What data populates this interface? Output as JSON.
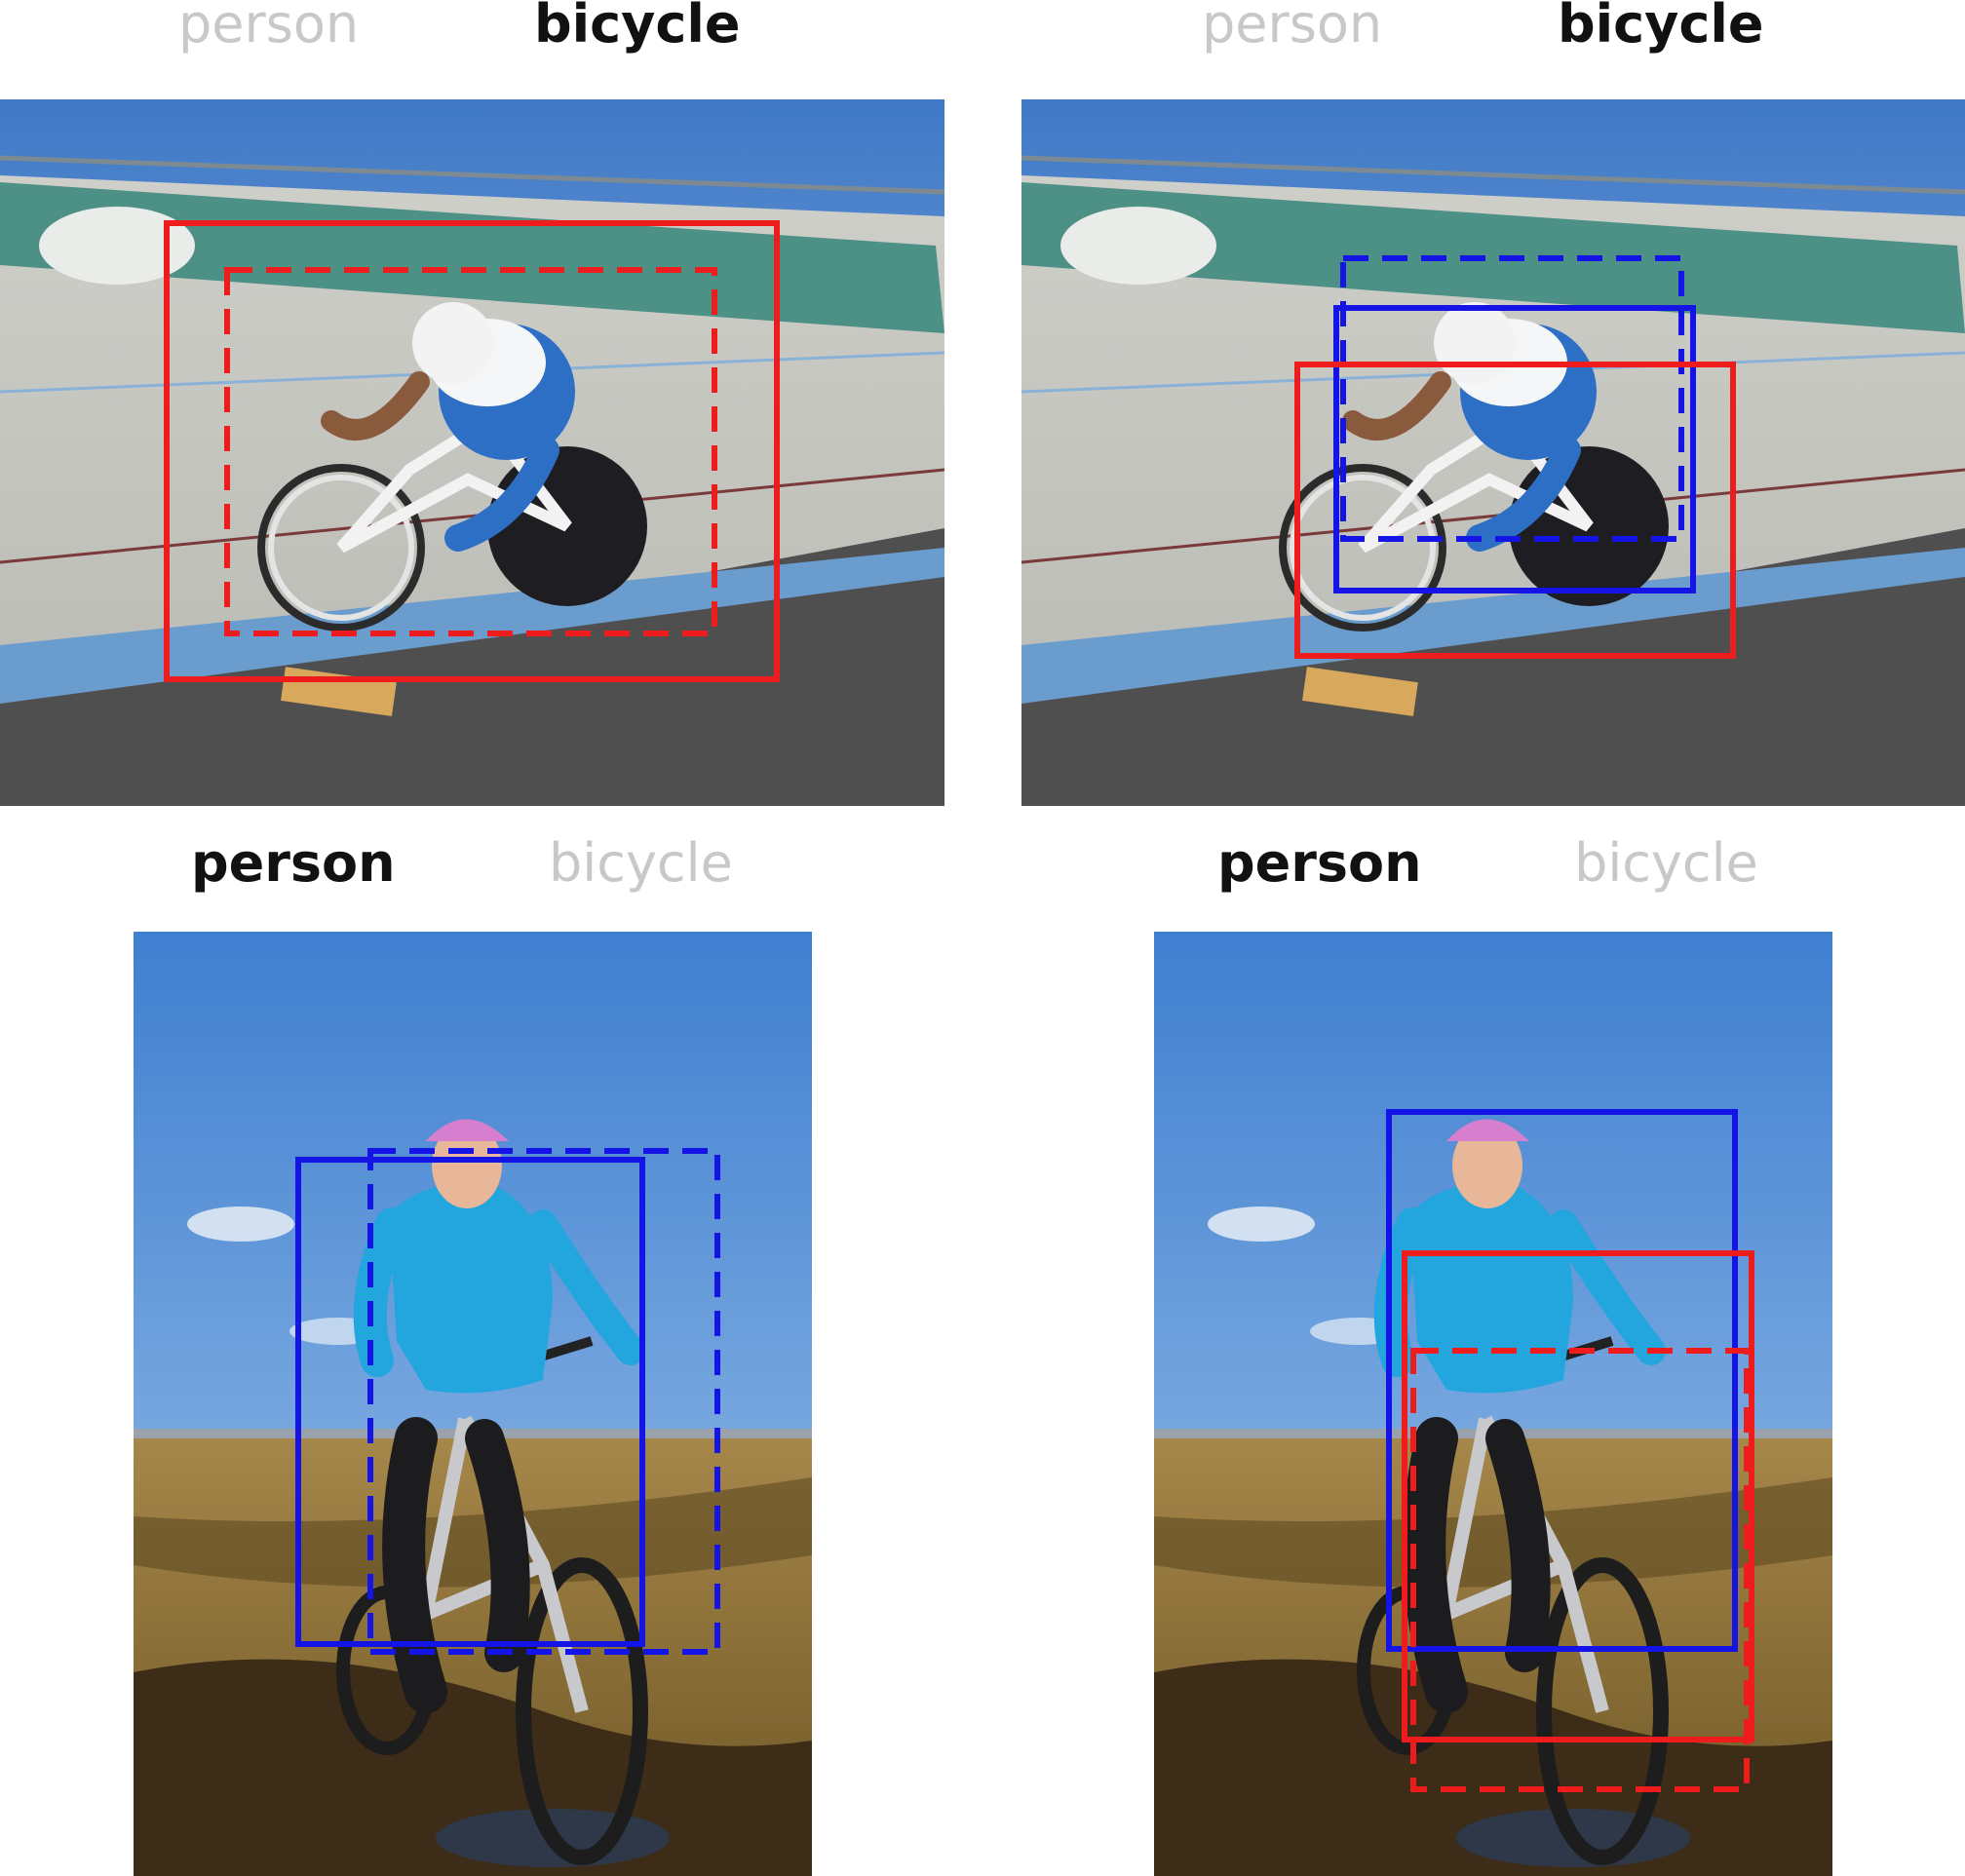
{
  "colors": {
    "red_box": "#ee1c1c",
    "blue_box": "#1414e6",
    "active_label": "#111111",
    "inactive_label": "#c8c8c8"
  },
  "panels": [
    {
      "id": "top-left",
      "scene": "track-cyclist",
      "labels": {
        "person": "person",
        "bicycle": "bicycle"
      },
      "active_class": "bicycle",
      "boxes": [
        {
          "color": "red",
          "style": "solid"
        },
        {
          "color": "red",
          "style": "dashed"
        }
      ]
    },
    {
      "id": "top-right",
      "scene": "track-cyclist",
      "labels": {
        "person": "person",
        "bicycle": "bicycle"
      },
      "active_class": "bicycle",
      "boxes": [
        {
          "color": "blue",
          "style": "dashed"
        },
        {
          "color": "blue",
          "style": "solid"
        },
        {
          "color": "red",
          "style": "solid"
        }
      ]
    },
    {
      "id": "bottom-left",
      "scene": "mountain-biker",
      "labels": {
        "person": "person",
        "bicycle": "bicycle"
      },
      "active_class": "person",
      "boxes": [
        {
          "color": "blue",
          "style": "solid"
        },
        {
          "color": "blue",
          "style": "dashed"
        }
      ]
    },
    {
      "id": "bottom-right",
      "scene": "mountain-biker",
      "labels": {
        "person": "person",
        "bicycle": "bicycle"
      },
      "active_class": "person",
      "boxes": [
        {
          "color": "blue",
          "style": "solid"
        },
        {
          "color": "red",
          "style": "solid"
        },
        {
          "color": "red",
          "style": "dashed"
        }
      ]
    }
  ]
}
